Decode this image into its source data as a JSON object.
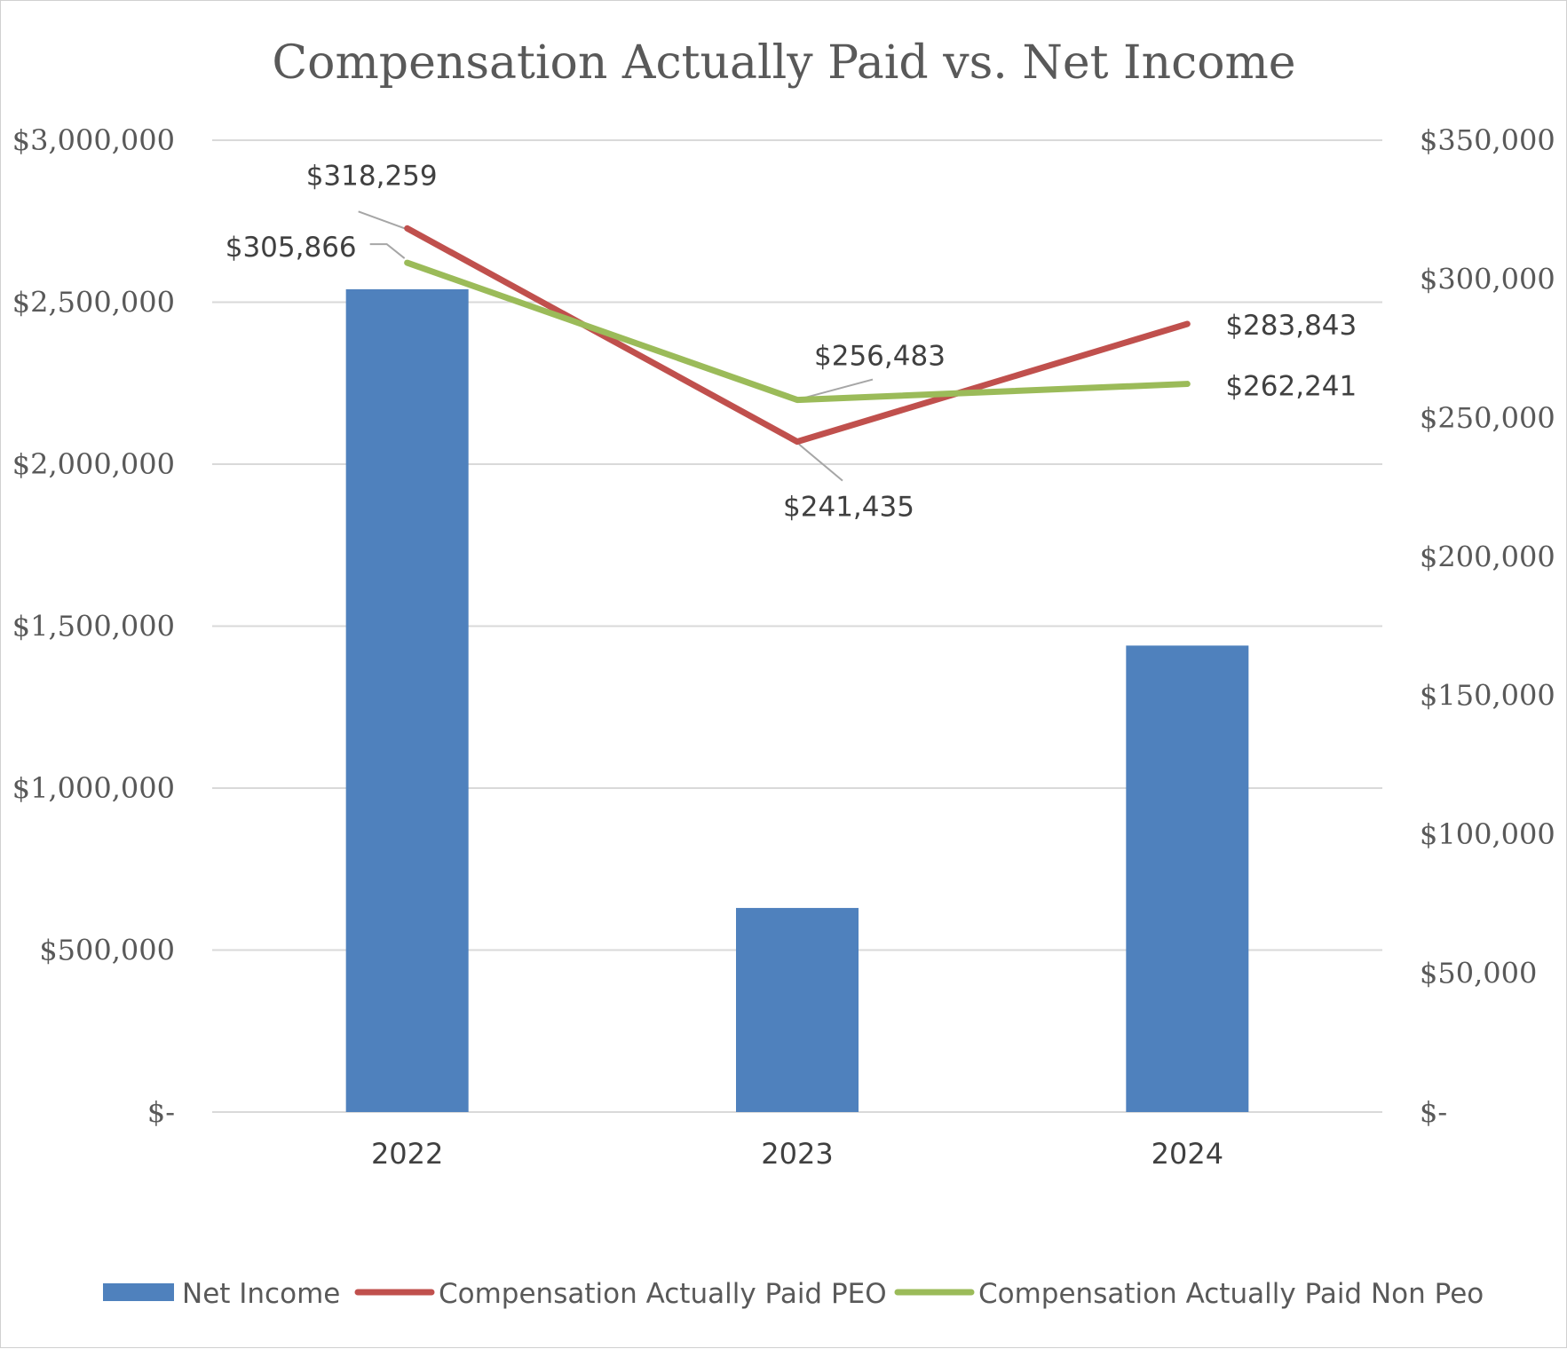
{
  "chart_data": {
    "type": "bar",
    "title": "Compensation Actually Paid vs. Net Income",
    "categories": [
      "2022",
      "2023",
      "2024"
    ],
    "y_left": {
      "ylim": [
        0,
        3000000
      ],
      "ticks": [
        0,
        500000,
        1000000,
        1500000,
        2000000,
        2500000,
        3000000
      ],
      "tick_labels": [
        "$-",
        "$500,000",
        "$1,000,000",
        "$1,500,000",
        "$2,000,000",
        "$2,500,000",
        "$3,000,000"
      ]
    },
    "y_right": {
      "ylim": [
        0,
        350000
      ],
      "ticks": [
        0,
        50000,
        100000,
        150000,
        200000,
        250000,
        300000,
        350000
      ],
      "tick_labels": [
        "$-",
        "$50,000",
        "$100,000",
        "$150,000",
        "$200,000",
        "$250,000",
        "$300,000",
        "$350,000"
      ]
    },
    "grid": true,
    "legend_position": "bottom",
    "series": [
      {
        "name": "Net Income",
        "type": "bar",
        "axis": "left",
        "color": "#4f81bd",
        "values": [
          2540000,
          630000,
          1440000
        ]
      },
      {
        "name": "Compensation Actually Paid PEO",
        "type": "line",
        "axis": "right",
        "color": "#c0504d",
        "values": [
          318259,
          241435,
          283843
        ],
        "data_labels": [
          "$318,259",
          "$241,435",
          "$283,843"
        ]
      },
      {
        "name": "Compensation Actually Paid Non Peo",
        "type": "line",
        "axis": "right",
        "color": "#9bbb59",
        "values": [
          305866,
          256483,
          262241
        ],
        "data_labels": [
          "$305,866",
          "$256,483",
          "$262,241"
        ]
      }
    ]
  }
}
